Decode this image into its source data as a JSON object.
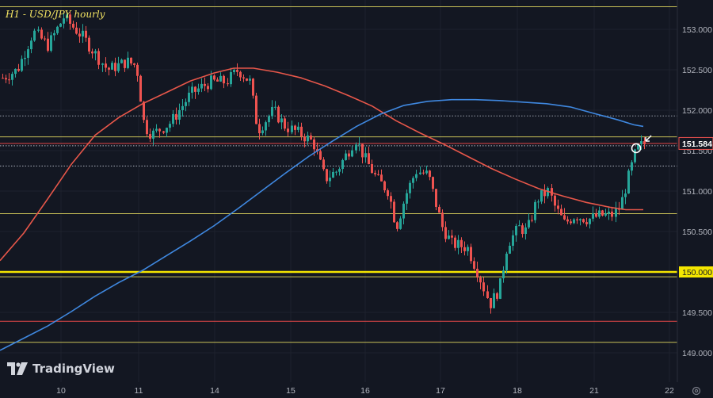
{
  "header": {
    "title": "H1 - USD/JPY hourly"
  },
  "branding": {
    "name": "TradingView"
  },
  "chart_data": {
    "type": "candlestick",
    "title": "H1 - USD/JPY hourly",
    "x_labels": [
      "10",
      "11",
      "14",
      "15",
      "16",
      "17",
      "18",
      "21",
      "22"
    ],
    "y_ticks": [
      149.0,
      149.5,
      150.0,
      150.5,
      151.0,
      151.5,
      152.0,
      152.5,
      153.0
    ],
    "y_tick_labels": [
      "149.000",
      "149.500",
      "150.000",
      "150.500",
      "151.000",
      "151.500",
      "152.000",
      "152.500",
      "153.000"
    ],
    "ylim": [
      148.45,
      153.38
    ],
    "horizontal_levels": [
      {
        "price": 153.28,
        "color": "#c9c157",
        "style": "solid"
      },
      {
        "price": 151.67,
        "color": "#c9c157",
        "style": "solid"
      },
      {
        "price": 151.59,
        "color": "#e04646",
        "style": "solid"
      },
      {
        "price": 151.56,
        "color": "#aab0bb",
        "style": "dotted"
      },
      {
        "price": 151.93,
        "color": "#aab0bb",
        "style": "dotted"
      },
      {
        "price": 151.31,
        "color": "#aab0bb",
        "style": "dotted"
      },
      {
        "price": 150.72,
        "color": "#c9c157",
        "style": "solid"
      },
      {
        "price": 150.0,
        "color": "#f5e600",
        "style": "solid-thick"
      },
      {
        "price": 149.94,
        "color": "#c9c157",
        "style": "solid"
      },
      {
        "price": 149.39,
        "color": "#e04646",
        "style": "solid"
      },
      {
        "price": 149.13,
        "color": "#c9c157",
        "style": "solid"
      }
    ],
    "current_price": {
      "label": "151.584",
      "value": 151.584
    },
    "marked_level": {
      "label": "150.000",
      "value": 150.0
    },
    "moving_averages": [
      {
        "color": "#e8574a",
        "points": [
          [
            0,
            150.14
          ],
          [
            30,
            150.48
          ],
          [
            60,
            150.9
          ],
          [
            90,
            151.33
          ],
          [
            120,
            151.69
          ],
          [
            150,
            151.91
          ],
          [
            180,
            152.08
          ],
          [
            210,
            152.22
          ],
          [
            240,
            152.36
          ],
          [
            270,
            152.46
          ],
          [
            295,
            152.52
          ],
          [
            320,
            152.52
          ],
          [
            350,
            152.47
          ],
          [
            380,
            152.4
          ],
          [
            410,
            152.3
          ],
          [
            440,
            152.18
          ],
          [
            470,
            152.05
          ],
          [
            500,
            151.87
          ],
          [
            530,
            151.72
          ],
          [
            560,
            151.58
          ],
          [
            590,
            151.43
          ],
          [
            620,
            151.28
          ],
          [
            650,
            151.15
          ],
          [
            680,
            151.03
          ],
          [
            710,
            150.94
          ],
          [
            740,
            150.86
          ],
          [
            770,
            150.8
          ],
          [
            790,
            150.77
          ],
          [
            812,
            150.77
          ]
        ]
      },
      {
        "color": "#3f88e0",
        "points": [
          [
            0,
            149.03
          ],
          [
            30,
            149.18
          ],
          [
            60,
            149.33
          ],
          [
            90,
            149.51
          ],
          [
            120,
            149.7
          ],
          [
            150,
            149.87
          ],
          [
            180,
            150.02
          ],
          [
            210,
            150.2
          ],
          [
            240,
            150.38
          ],
          [
            270,
            150.57
          ],
          [
            300,
            150.78
          ],
          [
            330,
            151.0
          ],
          [
            360,
            151.22
          ],
          [
            390,
            151.43
          ],
          [
            420,
            151.62
          ],
          [
            450,
            151.8
          ],
          [
            480,
            151.95
          ],
          [
            510,
            152.06
          ],
          [
            540,
            152.11
          ],
          [
            570,
            152.13
          ],
          [
            600,
            152.13
          ],
          [
            630,
            152.12
          ],
          [
            660,
            152.1
          ],
          [
            690,
            152.08
          ],
          [
            720,
            152.04
          ],
          [
            750,
            151.96
          ],
          [
            780,
            151.88
          ],
          [
            800,
            151.82
          ],
          [
            812,
            151.8
          ]
        ]
      }
    ]
  }
}
